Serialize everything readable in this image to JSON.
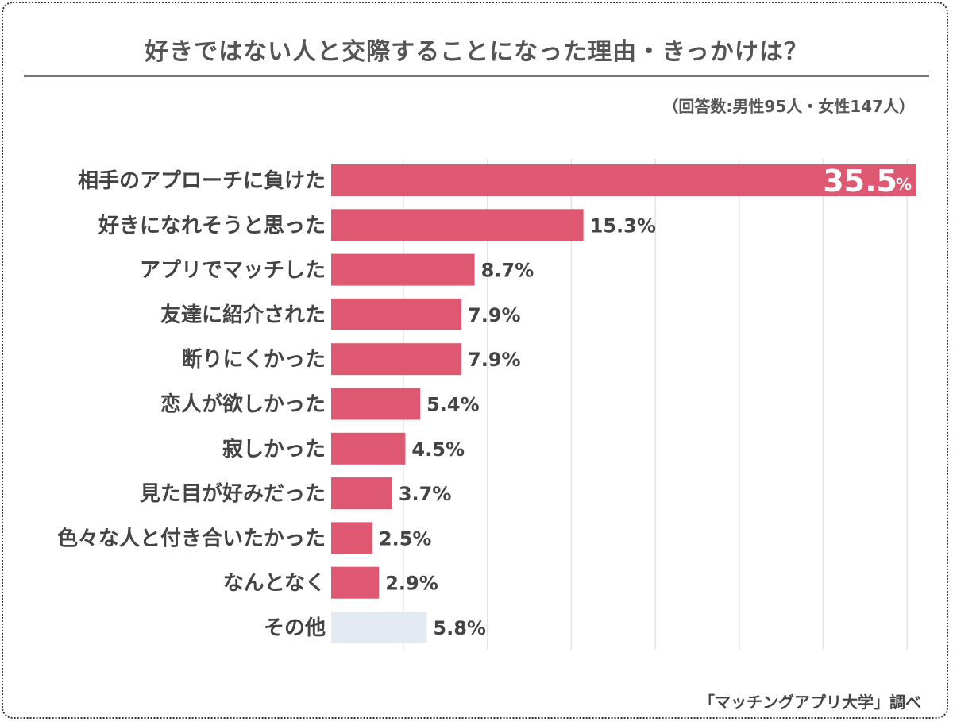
{
  "chart_data": {
    "type": "bar",
    "orientation": "horizontal",
    "title": "好きではない人と交際することになった理由・きっかけは？",
    "subtitle": "（回答数:男性95人・女性147人）",
    "source": "「マッチングアプリ大学」調べ",
    "categories": [
      "相手のアプローチに負けた",
      "好きになれそうと思った",
      "アプリでマッチした",
      "友達に紹介された",
      "断りにくかった",
      "恋人が欲しかった",
      "寂しかった",
      "見た目が好みだった",
      "色々な人と付き合いたかった",
      "なんとなく",
      "その他"
    ],
    "values": [
      35.5,
      15.3,
      8.7,
      7.9,
      7.9,
      5.4,
      4.5,
      3.7,
      2.5,
      2.9,
      5.8
    ],
    "labels": [
      "35.5",
      "15.3%",
      "8.7%",
      "7.9%",
      "7.9%",
      "5.4%",
      "4.5%",
      "3.7%",
      "2.5%",
      "2.9%",
      "5.8%"
    ],
    "first_label_unit": "%",
    "unit": "%",
    "grid": true,
    "colors": {
      "bar": "#dd5870",
      "other": "#e4eaf1",
      "gridline": "#e3e3e3",
      "text": "#444444",
      "highlight_label": "#ffffff"
    }
  }
}
